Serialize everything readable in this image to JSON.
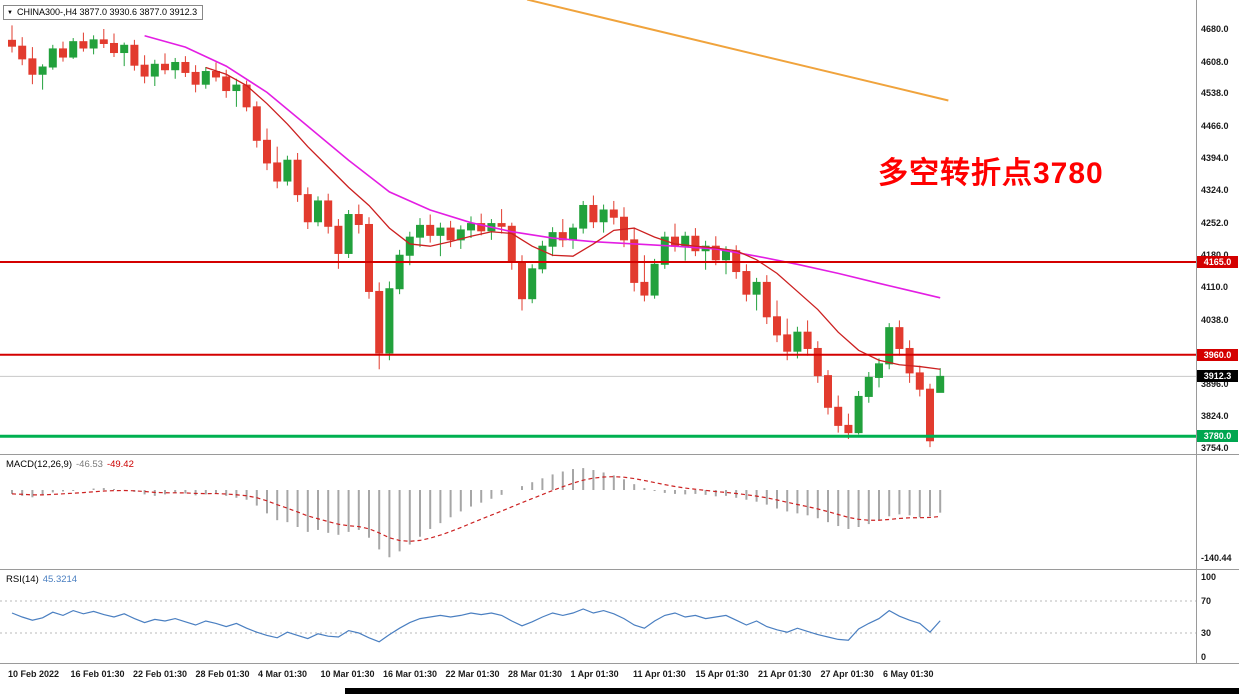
{
  "window": {
    "title_bar": "CHINA300-,H4 3877.0 3930.6 3877.0 3912.3",
    "annotation": "多空转折点3780",
    "annotation_color": "#FF0000"
  },
  "price_axis": {
    "ticks": [
      "4680.0",
      "4608.0",
      "4538.0",
      "4466.0",
      "4394.0",
      "4324.0",
      "4252.0",
      "4180.0",
      "4110.0",
      "4038.0",
      "3896.0",
      "3824.0",
      "3754.0"
    ]
  },
  "macd": {
    "name": "MACD(12,26,9)",
    "main": "-46.53",
    "signal": "-49.42",
    "min_label": "-140.44"
  },
  "rsi": {
    "name": "RSI(14)",
    "value": "45.3214",
    "axis": [
      "100",
      "70",
      "30",
      "0"
    ]
  },
  "time_axis": {
    "labels": [
      "10 Feb 2022",
      "16 Feb 01:30",
      "22 Feb 01:30",
      "28 Feb 01:30",
      "4 Mar 01:30",
      "10 Mar 01:30",
      "16 Mar 01:30",
      "22 Mar 01:30",
      "28 Mar 01:30",
      "1 Apr 01:30",
      "11 Apr 01:30",
      "15 Apr 01:30",
      "21 Apr 01:30",
      "27 Apr 01:30",
      "6 May 01:30"
    ]
  },
  "chart_data": {
    "type": "candlestick",
    "symbol": "CHINA300-",
    "timeframe": "H4",
    "quote": {
      "open": 3877.0,
      "high": 3930.6,
      "low": 3877.0,
      "close": 3912.3
    },
    "colors": {
      "up": "#22a13c",
      "down": "#e23b2e"
    },
    "levels": [
      {
        "label": "4165.0",
        "price": 4165.0,
        "type": "resistance",
        "bg": "#d40000",
        "line": "#d40000"
      },
      {
        "label": "3960.0",
        "price": 3960.0,
        "type": "resistance",
        "bg": "#d40000",
        "line": "#d40000"
      },
      {
        "label": "3912.3",
        "price": 3912.3,
        "type": "current",
        "bg": "#000000",
        "line": "#c8c8c8"
      },
      {
        "label": "3780.0",
        "price": 3780.0,
        "type": "support",
        "bg": "#00a650",
        "line": "#00b050"
      }
    ],
    "trendline": {
      "color": "#f0a33c",
      "points": [
        [
          50.5,
          4745
        ],
        [
          91.8,
          4522
        ]
      ]
    },
    "ma_slow": {
      "color": "#e31ee3",
      "points": [
        [
          13,
          4665
        ],
        [
          17,
          4640
        ],
        [
          21,
          4598
        ],
        [
          25,
          4540
        ],
        [
          29,
          4465
        ],
        [
          33,
          4390
        ],
        [
          37,
          4320
        ],
        [
          41,
          4280
        ],
        [
          45,
          4252
        ],
        [
          49,
          4232
        ],
        [
          53,
          4218
        ],
        [
          57,
          4210
        ],
        [
          61,
          4205
        ],
        [
          65,
          4200
        ],
        [
          69,
          4194
        ],
        [
          73,
          4178
        ],
        [
          77,
          4160
        ],
        [
          81,
          4140
        ],
        [
          85,
          4118
        ],
        [
          88,
          4102
        ],
        [
          91,
          4086
        ]
      ]
    },
    "ma_fast": {
      "color": "#cc2020",
      "points": [
        [
          19,
          4595
        ],
        [
          21,
          4580
        ],
        [
          23,
          4555
        ],
        [
          25,
          4515
        ],
        [
          27,
          4470
        ],
        [
          29,
          4420
        ],
        [
          31,
          4375
        ],
        [
          33,
          4330
        ],
        [
          35,
          4290
        ],
        [
          37,
          4240
        ],
        [
          39,
          4205
        ],
        [
          41,
          4200
        ],
        [
          43,
          4210
        ],
        [
          45,
          4222
        ],
        [
          47,
          4232
        ],
        [
          49,
          4228
        ],
        [
          51,
          4200
        ],
        [
          53,
          4180
        ],
        [
          55,
          4178
        ],
        [
          57,
          4205
        ],
        [
          59,
          4235
        ],
        [
          61,
          4240
        ],
        [
          63,
          4220
        ],
        [
          65,
          4205
        ],
        [
          67,
          4200
        ],
        [
          69,
          4196
        ],
        [
          71,
          4190
        ],
        [
          73,
          4170
        ],
        [
          75,
          4140
        ],
        [
          77,
          4100
        ],
        [
          79,
          4060
        ],
        [
          81,
          4010
        ],
        [
          83,
          3970
        ],
        [
          85,
          3948
        ],
        [
          87,
          3938
        ],
        [
          89,
          3934
        ],
        [
          91,
          3928
        ]
      ]
    },
    "candles": [
      [
        4655,
        4688,
        4628,
        4642
      ],
      [
        4642,
        4662,
        4600,
        4614
      ],
      [
        4614,
        4640,
        4558,
        4580
      ],
      [
        4580,
        4602,
        4546,
        4596
      ],
      [
        4596,
        4645,
        4590,
        4636
      ],
      [
        4636,
        4652,
        4608,
        4618
      ],
      [
        4618,
        4660,
        4614,
        4652
      ],
      [
        4652,
        4672,
        4630,
        4638
      ],
      [
        4638,
        4666,
        4624,
        4656
      ],
      [
        4656,
        4680,
        4638,
        4648
      ],
      [
        4648,
        4670,
        4618,
        4628
      ],
      [
        4628,
        4650,
        4598,
        4644
      ],
      [
        4644,
        4656,
        4588,
        4600
      ],
      [
        4600,
        4622,
        4560,
        4576
      ],
      [
        4576,
        4612,
        4554,
        4602
      ],
      [
        4602,
        4626,
        4580,
        4590
      ],
      [
        4590,
        4616,
        4570,
        4606
      ],
      [
        4606,
        4620,
        4574,
        4584
      ],
      [
        4584,
        4600,
        4540,
        4558
      ],
      [
        4558,
        4596,
        4548,
        4586
      ],
      [
        4586,
        4606,
        4564,
        4574
      ],
      [
        4574,
        4590,
        4528,
        4544
      ],
      [
        4544,
        4570,
        4508,
        4556
      ],
      [
        4556,
        4566,
        4498,
        4508
      ],
      [
        4508,
        4520,
        4418,
        4434
      ],
      [
        4434,
        4460,
        4368,
        4384
      ],
      [
        4384,
        4420,
        4328,
        4344
      ],
      [
        4344,
        4400,
        4334,
        4390
      ],
      [
        4390,
        4406,
        4298,
        4314
      ],
      [
        4314,
        4330,
        4238,
        4254
      ],
      [
        4254,
        4310,
        4244,
        4300
      ],
      [
        4300,
        4316,
        4228,
        4244
      ],
      [
        4244,
        4260,
        4150,
        4184
      ],
      [
        4184,
        4280,
        4174,
        4270
      ],
      [
        4270,
        4292,
        4228,
        4248
      ],
      [
        4248,
        4264,
        4084,
        4100
      ],
      [
        4100,
        4120,
        3928,
        3964
      ],
      [
        3964,
        4122,
        3948,
        4106
      ],
      [
        4106,
        4192,
        4094,
        4180
      ],
      [
        4180,
        4232,
        4158,
        4220
      ],
      [
        4220,
        4262,
        4198,
        4246
      ],
      [
        4246,
        4270,
        4208,
        4224
      ],
      [
        4224,
        4252,
        4178,
        4240
      ],
      [
        4240,
        4256,
        4198,
        4214
      ],
      [
        4214,
        4246,
        4194,
        4236
      ],
      [
        4236,
        4266,
        4218,
        4250
      ],
      [
        4250,
        4272,
        4224,
        4234
      ],
      [
        4234,
        4260,
        4214,
        4250
      ],
      [
        4250,
        4282,
        4228,
        4244
      ],
      [
        4244,
        4252,
        4148,
        4164
      ],
      [
        4164,
        4180,
        4058,
        4084
      ],
      [
        4084,
        4160,
        4074,
        4150
      ],
      [
        4150,
        4212,
        4140,
        4200
      ],
      [
        4200,
        4242,
        4178,
        4230
      ],
      [
        4230,
        4260,
        4198,
        4214
      ],
      [
        4214,
        4250,
        4194,
        4240
      ],
      [
        4240,
        4300,
        4228,
        4290
      ],
      [
        4290,
        4312,
        4240,
        4254
      ],
      [
        4254,
        4292,
        4230,
        4280
      ],
      [
        4280,
        4300,
        4248,
        4264
      ],
      [
        4264,
        4286,
        4198,
        4214
      ],
      [
        4214,
        4240,
        4100,
        4120
      ],
      [
        4120,
        4180,
        4078,
        4092
      ],
      [
        4092,
        4172,
        4084,
        4160
      ],
      [
        4160,
        4232,
        4150,
        4220
      ],
      [
        4220,
        4250,
        4188,
        4200
      ],
      [
        4200,
        4232,
        4168,
        4222
      ],
      [
        4222,
        4240,
        4178,
        4190
      ],
      [
        4190,
        4212,
        4148,
        4200
      ],
      [
        4200,
        4222,
        4158,
        4170
      ],
      [
        4170,
        4200,
        4138,
        4190
      ],
      [
        4190,
        4202,
        4128,
        4144
      ],
      [
        4144,
        4160,
        4078,
        4094
      ],
      [
        4094,
        4130,
        4058,
        4120
      ],
      [
        4120,
        4136,
        4028,
        4044
      ],
      [
        4044,
        4080,
        3988,
        4004
      ],
      [
        4004,
        4040,
        3948,
        3968
      ],
      [
        3968,
        4022,
        3952,
        4010
      ],
      [
        4010,
        4036,
        3958,
        3974
      ],
      [
        3974,
        3990,
        3898,
        3914
      ],
      [
        3914,
        3926,
        3828,
        3844
      ],
      [
        3844,
        3870,
        3788,
        3804
      ],
      [
        3804,
        3830,
        3774,
        3788
      ],
      [
        3788,
        3880,
        3784,
        3868
      ],
      [
        3868,
        3922,
        3854,
        3910
      ],
      [
        3910,
        3952,
        3888,
        3940
      ],
      [
        3940,
        4030,
        3928,
        4020
      ],
      [
        4020,
        4036,
        3958,
        3974
      ],
      [
        3974,
        3992,
        3898,
        3920
      ],
      [
        3920,
        3936,
        3868,
        3884
      ],
      [
        3884,
        3896,
        3756,
        3770
      ],
      [
        3877,
        3930.6,
        3877,
        3912.3
      ]
    ],
    "macd_hist": [
      -8,
      -12,
      -15,
      -10,
      -5,
      -3,
      -2,
      0,
      3,
      4,
      2,
      0,
      -4,
      -9,
      -12,
      -9,
      -6,
      -7,
      -11,
      -9,
      -7,
      -12,
      -16,
      -20,
      -32,
      -48,
      -62,
      -66,
      -76,
      -86,
      -82,
      -88,
      -92,
      -86,
      -82,
      -98,
      -122,
      -138,
      -126,
      -112,
      -96,
      -80,
      -68,
      -56,
      -44,
      -34,
      -26,
      -18,
      -10,
      0,
      8,
      16,
      24,
      32,
      38,
      43,
      45,
      41,
      36,
      30,
      22,
      12,
      4,
      -2,
      -6,
      -8,
      -9,
      -8,
      -10,
      -13,
      -12,
      -16,
      -20,
      -24,
      -30,
      -38,
      -44,
      -48,
      -52,
      -58,
      -66,
      -74,
      -80,
      -76,
      -70,
      -62,
      -54,
      -50,
      -52,
      -56,
      -54,
      -46.53
    ],
    "rsi_values": [
      55,
      50,
      46,
      49,
      56,
      52,
      58,
      54,
      57,
      53,
      50,
      54,
      48,
      43,
      47,
      45,
      48,
      44,
      40,
      45,
      42,
      38,
      42,
      36,
      31,
      27,
      24,
      31,
      27,
      23,
      29,
      26,
      25,
      33,
      30,
      24,
      19,
      28,
      36,
      43,
      48,
      50,
      52,
      50,
      52,
      55,
      53,
      55,
      52,
      45,
      39,
      44,
      50,
      55,
      52,
      55,
      60,
      55,
      58,
      54,
      48,
      40,
      36,
      45,
      52,
      55,
      50,
      52,
      48,
      50,
      52,
      46,
      40,
      45,
      38,
      34,
      31,
      36,
      32,
      28,
      25,
      22,
      21,
      35,
      42,
      48,
      58,
      51,
      46,
      42,
      31,
      45.32
    ]
  }
}
